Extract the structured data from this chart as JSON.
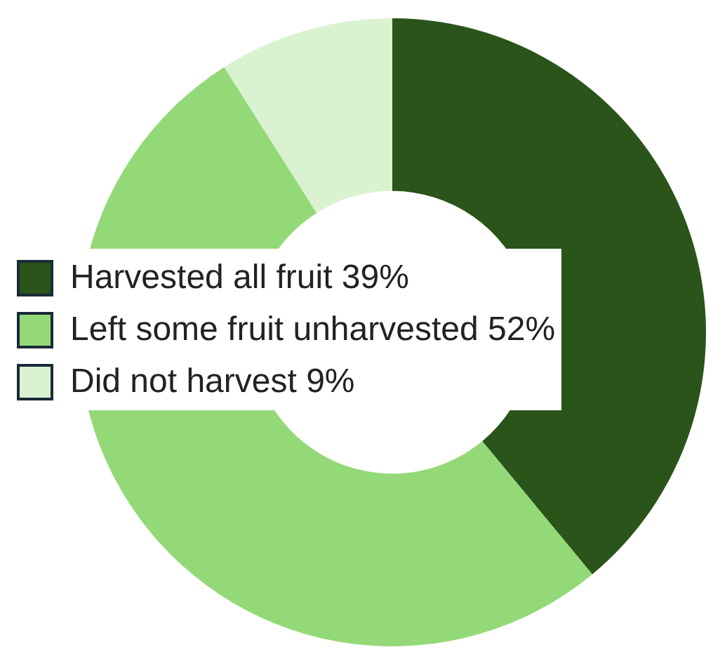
{
  "chart_data": {
    "type": "donut",
    "categories": [
      "Harvested all fruit",
      "Left some fruit unharvested",
      "Did not harvest"
    ],
    "values": [
      39,
      52,
      9
    ],
    "value_labels": [
      "39%",
      "52%",
      "9%"
    ],
    "colors": [
      "#2a5419",
      "#93d977",
      "#d9f2d0"
    ],
    "legend": "left"
  }
}
